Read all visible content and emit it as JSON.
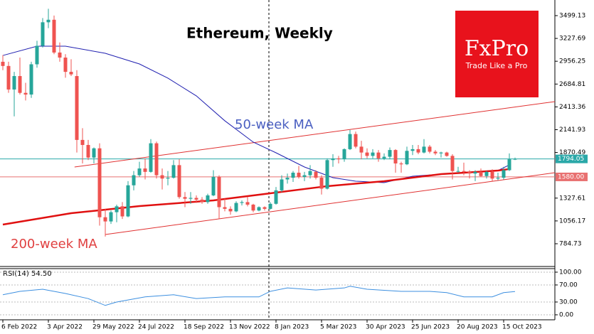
{
  "chart_data": {
    "type": "candlestick",
    "title": "Ethereum, Weekly",
    "categories": [
      "6 Feb 2022",
      null,
      null,
      null,
      null,
      null,
      null,
      null,
      "3 Apr 2022",
      null,
      null,
      null,
      null,
      null,
      null,
      null,
      "29 May 2022",
      null,
      null,
      null,
      null,
      null,
      null,
      null,
      "24 Jul 2022",
      null,
      null,
      null,
      null,
      null,
      null,
      null,
      "18 Sep 2022",
      null,
      null,
      null,
      null,
      null,
      null,
      null,
      "13 Nov 2022",
      null,
      null,
      null,
      null,
      null,
      null,
      null,
      "8 Jan 2023",
      null,
      null,
      null,
      null,
      null,
      null,
      null,
      "5 Mar 2023",
      null,
      null,
      null,
      null,
      null,
      null,
      null,
      "30 Apr 2023",
      null,
      null,
      null,
      null,
      null,
      null,
      null,
      "25 Jun 2023",
      null,
      null,
      null,
      null,
      null,
      null,
      null,
      "20 Aug 2023",
      null,
      null,
      null,
      null,
      null,
      null,
      null,
      "15 Oct 2023",
      null,
      null
    ],
    "candles": [
      [
        2950,
        3030,
        2850,
        2900
      ],
      [
        2900,
        2950,
        2580,
        2620
      ],
      [
        2620,
        2830,
        2300,
        2780
      ],
      [
        2780,
        3000,
        2560,
        2580
      ],
      [
        2580,
        2700,
        2490,
        2560
      ],
      [
        2560,
        2950,
        2520,
        2920
      ],
      [
        2920,
        3200,
        2880,
        3140
      ],
      [
        3140,
        3470,
        3120,
        3420
      ],
      [
        3420,
        3580,
        3350,
        3450
      ],
      [
        3450,
        3500,
        3040,
        3060
      ],
      [
        3060,
        3180,
        2950,
        3000
      ],
      [
        3000,
        3040,
        2760,
        2830
      ],
      [
        2830,
        2980,
        2780,
        2800
      ],
      [
        2780,
        2850,
        1870,
        2020
      ],
      [
        2020,
        2160,
        1740,
        1960
      ],
      [
        1960,
        2020,
        1780,
        1810
      ],
      [
        1810,
        1930,
        1740,
        1920
      ],
      [
        1920,
        1980,
        1000,
        1100
      ],
      [
        1100,
        1200,
        870,
        1050
      ],
      [
        1050,
        1180,
        1020,
        1160
      ],
      [
        1160,
        1250,
        1040,
        1230
      ],
      [
        1230,
        1280,
        1080,
        1110
      ],
      [
        1110,
        1530,
        1100,
        1480
      ],
      [
        1480,
        1650,
        1420,
        1600
      ],
      [
        1600,
        1760,
        1580,
        1680
      ],
      [
        1680,
        1800,
        1550,
        1640
      ],
      [
        1640,
        2030,
        1630,
        1980
      ],
      [
        1980,
        2000,
        1560,
        1600
      ],
      [
        1600,
        1680,
        1430,
        1560
      ],
      [
        1560,
        1650,
        1480,
        1570
      ],
      [
        1570,
        1780,
        1560,
        1720
      ],
      [
        1720,
        1790,
        1320,
        1340
      ],
      [
        1340,
        1400,
        1220,
        1320
      ],
      [
        1320,
        1400,
        1260,
        1330
      ],
      [
        1330,
        1360,
        1270,
        1310
      ],
      [
        1310,
        1340,
        1260,
        1280
      ],
      [
        1280,
        1380,
        1260,
        1360
      ],
      [
        1360,
        1660,
        1350,
        1580
      ],
      [
        1580,
        1600,
        1080,
        1220
      ],
      [
        1220,
        1320,
        1170,
        1200
      ],
      [
        1200,
        1230,
        1130,
        1170
      ],
      [
        1170,
        1290,
        1160,
        1270
      ],
      [
        1270,
        1300,
        1240,
        1280
      ],
      [
        1280,
        1340,
        1230,
        1250
      ],
      [
        1250,
        1260,
        1160,
        1180
      ],
      [
        1180,
        1230,
        1170,
        1220
      ],
      [
        1220,
        1230,
        1180,
        1200
      ],
      [
        1200,
        1280,
        1190,
        1260
      ],
      [
        1260,
        1460,
        1250,
        1420
      ],
      [
        1420,
        1600,
        1400,
        1550
      ],
      [
        1550,
        1620,
        1500,
        1570
      ],
      [
        1570,
        1650,
        1520,
        1630
      ],
      [
        1630,
        1710,
        1560,
        1580
      ],
      [
        1580,
        1640,
        1530,
        1600
      ],
      [
        1600,
        1720,
        1560,
        1650
      ],
      [
        1640,
        1660,
        1550,
        1570
      ],
      [
        1570,
        1600,
        1370,
        1440
      ],
      [
        1440,
        1800,
        1430,
        1780
      ],
      [
        1780,
        1850,
        1700,
        1800
      ],
      [
        1800,
        1830,
        1740,
        1790
      ],
      [
        1790,
        1920,
        1760,
        1910
      ],
      [
        1910,
        2140,
        1900,
        2090
      ],
      [
        2090,
        2120,
        1920,
        1940
      ],
      [
        1940,
        2010,
        1790,
        1870
      ],
      [
        1870,
        1920,
        1800,
        1830
      ],
      [
        1830,
        1910,
        1800,
        1870
      ],
      [
        1870,
        1900,
        1760,
        1800
      ],
      [
        1800,
        1860,
        1780,
        1820
      ],
      [
        1820,
        1930,
        1790,
        1900
      ],
      [
        1900,
        1910,
        1630,
        1740
      ],
      [
        1740,
        1760,
        1630,
        1730
      ],
      [
        1730,
        1940,
        1720,
        1890
      ],
      [
        1890,
        1960,
        1840,
        1910
      ],
      [
        1910,
        1960,
        1850,
        1870
      ],
      [
        1870,
        2030,
        1860,
        1940
      ],
      [
        1940,
        1960,
        1860,
        1880
      ],
      [
        1880,
        1900,
        1840,
        1860
      ],
      [
        1860,
        1880,
        1810,
        1870
      ],
      [
        1870,
        1880,
        1820,
        1830
      ],
      [
        1830,
        1850,
        1550,
        1650
      ],
      [
        1650,
        1700,
        1630,
        1650
      ],
      [
        1650,
        1750,
        1600,
        1640
      ],
      [
        1640,
        1660,
        1560,
        1620
      ],
      [
        1620,
        1660,
        1530,
        1640
      ],
      [
        1640,
        1680,
        1580,
        1590
      ],
      [
        1590,
        1650,
        1560,
        1640
      ],
      [
        1640,
        1670,
        1530,
        1560
      ],
      [
        1560,
        1630,
        1540,
        1570
      ],
      [
        1570,
        1700,
        1550,
        1660
      ],
      [
        1660,
        1860,
        1650,
        1790
      ],
      [
        1790,
        1810,
        1780,
        1794.05
      ]
    ],
    "up_color": "#26a69a",
    "down_color": "#ef5350",
    "series": [
      {
        "name": "50-week MA",
        "color": "#1f1fb0",
        "label_color": "#4a5fc1",
        "x": [
          0,
          6,
          11,
          18,
          24,
          29,
          34,
          39,
          44,
          48,
          53,
          58,
          62,
          67,
          72,
          77,
          82,
          87,
          89
        ],
        "values": [
          3025,
          3135,
          3135,
          3051,
          2924,
          2755,
          2544,
          2248,
          1994,
          1867,
          1698,
          1571,
          1529,
          1512,
          1588,
          1613,
          1639,
          1656,
          1723
        ]
      },
      {
        "name": "200-week MA",
        "color": "#e01010",
        "label_color": "#e04040",
        "x": [
          0,
          12,
          24,
          37,
          47,
          57,
          67,
          77,
          87,
          89
        ],
        "values": [
          1013,
          1148,
          1233,
          1300,
          1385,
          1470,
          1529,
          1613,
          1656,
          1673
        ]
      }
    ],
    "trendlines": [
      {
        "x": [
          12.6,
          97
        ],
        "values": [
          1698,
          2476
        ]
      },
      {
        "x": [
          18,
          97
        ],
        "values": [
          895,
          1630
        ]
      }
    ],
    "trendline_color": "#e03030",
    "hlines": [
      {
        "value": 1794.05,
        "color": "#2aa8a8"
      },
      {
        "value": {
          "value": 1580,
          "label": "1580.00"
        },
        "color": "#e87070"
      }
    ],
    "ylim": [
      514,
      3685
    ],
    "yticks": [
      3499.13,
      3227.69,
      2956.25,
      2684.81,
      2413.36,
      2141.93,
      1870.49,
      1327.61,
      1056.17,
      784.73
    ],
    "rsi": {
      "label": "RSI(14) 54.50",
      "color": "#3c8fe0",
      "ylim": [
        -11.7,
        108.3
      ],
      "yticks": [
        {
          "value": 100,
          "label": "100.00"
        },
        {
          "value": 70,
          "label": "70.00"
        },
        {
          "value": 30,
          "label": "30.00"
        },
        {
          "value": 0,
          "label": "0.00"
        }
      ],
      "x": [
        0,
        3,
        7,
        11,
        15,
        18,
        20,
        25,
        30,
        34,
        39,
        45,
        47,
        50,
        55,
        60,
        61,
        64,
        70,
        75,
        78,
        81,
        86,
        88,
        90
      ],
      "values": [
        47,
        55,
        60,
        50,
        38,
        22,
        30,
        42,
        47,
        38,
        42,
        42,
        55,
        63,
        58,
        63,
        67,
        60,
        55,
        55,
        52,
        42,
        42,
        52,
        54.5
      ]
    },
    "brand": {
      "name": "FxPro",
      "tagline": "Trade Like a Pro"
    }
  }
}
